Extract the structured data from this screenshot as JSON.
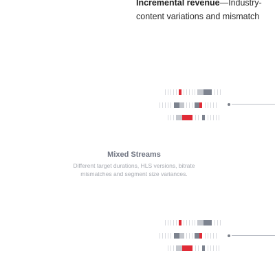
{
  "header": {
    "bold_text": "Incremental revenue",
    "rest_line1": "—Industry-",
    "line2": "content variations and mismatch"
  },
  "mixed_streams": {
    "title": "Mixed Streams",
    "description": "Different target durations, HLS versions, bitrate mismatches and segment size variances."
  },
  "colors": {
    "red": "#e02b36",
    "dark_gray": "#7d838f",
    "light_gray": "#c3c6cc",
    "tick": "#d8dadf"
  }
}
